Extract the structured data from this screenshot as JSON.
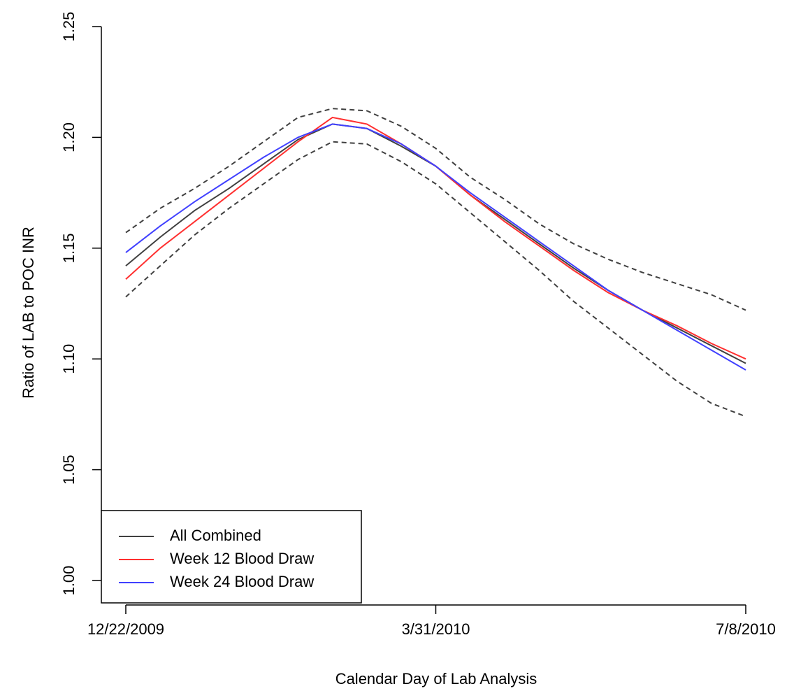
{
  "chart_data": {
    "type": "line",
    "xlabel": "Calendar Day of Lab Analysis",
    "ylabel": "Ratio of LAB to POC INR",
    "x": [
      "2009-12-22",
      "2010-01-02",
      "2010-01-13",
      "2010-01-24",
      "2010-02-04",
      "2010-02-15",
      "2010-02-26",
      "2010-03-09",
      "2010-03-20",
      "2010-03-31",
      "2010-04-11",
      "2010-04-22",
      "2010-05-03",
      "2010-05-14",
      "2010-05-25",
      "2010-06-05",
      "2010-06-16",
      "2010-06-27",
      "2010-07-08"
    ],
    "xlim": [
      "2009-12-22",
      "2010-07-08"
    ],
    "xticks": [
      {
        "value": "2009-12-22",
        "label": "12/22/2009"
      },
      {
        "value": "2010-03-31",
        "label": "3/31/2010"
      },
      {
        "value": "2010-07-08",
        "label": "7/8/2010"
      }
    ],
    "ylim": [
      1.0,
      1.25
    ],
    "yticks": [
      {
        "value": 1.0,
        "label": "1.00"
      },
      1.05,
      {
        "value": 1.1,
        "label": "1.10"
      },
      1.15,
      {
        "value": 1.2,
        "label": "1.20"
      },
      1.25
    ],
    "legend": "bottom-left",
    "series": [
      {
        "color": "#404040",
        "dash": true,
        "values": [
          1.157,
          1.168,
          1.177,
          1.187,
          1.198,
          1.209,
          1.213,
          1.212,
          1.205,
          1.195,
          1.182,
          1.172,
          1.161,
          1.152,
          1.145,
          1.139,
          1.134,
          1.129,
          1.122
        ]
      },
      {
        "color": "#404040",
        "dash": true,
        "values": [
          1.128,
          1.142,
          1.156,
          1.168,
          1.179,
          1.19,
          1.198,
          1.197,
          1.189,
          1.179,
          1.166,
          1.153,
          1.14,
          1.126,
          1.114,
          1.102,
          1.09,
          1.08,
          1.074
        ]
      },
      {
        "name": "All Combined",
        "color": "#404040",
        "values": [
          1.142,
          1.155,
          1.167,
          1.177,
          1.188,
          1.199,
          1.206,
          1.204,
          1.196,
          1.187,
          1.174,
          1.163,
          1.152,
          1.141,
          1.131,
          1.122,
          1.114,
          1.106,
          1.098
        ]
      },
      {
        "name": "Week 12 Blood Draw",
        "color": "#ff3030",
        "values": [
          1.136,
          1.15,
          1.162,
          1.174,
          1.186,
          1.198,
          1.209,
          1.206,
          1.197,
          1.187,
          1.174,
          1.162,
          1.151,
          1.14,
          1.13,
          1.122,
          1.115,
          1.107,
          1.1
        ]
      },
      {
        "name": "Week 24 Blood Draw",
        "color": "#4040ff",
        "values": [
          1.148,
          1.16,
          1.171,
          1.181,
          1.191,
          1.2,
          1.206,
          1.204,
          1.197,
          1.187,
          1.175,
          1.164,
          1.153,
          1.142,
          1.131,
          1.122,
          1.113,
          1.104,
          1.095
        ]
      }
    ]
  }
}
